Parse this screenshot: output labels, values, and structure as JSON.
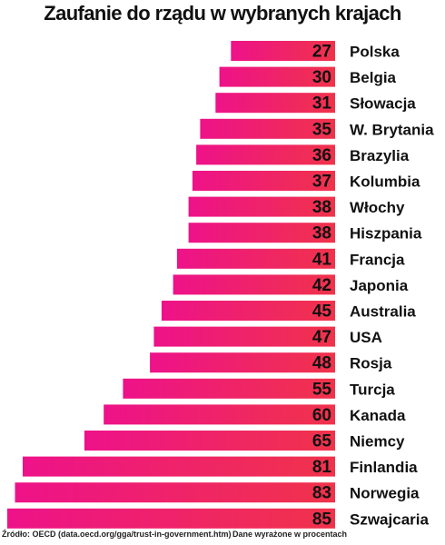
{
  "chart_data": {
    "type": "bar",
    "orientation": "horizontal",
    "title": "Zaufanie do rządu w wybranych krajach",
    "categories": [
      "Polska",
      "Belgia",
      "Słowacja",
      "W. Brytania",
      "Brazylia",
      "Kolumbia",
      "Włochy",
      "Hiszpania",
      "Francja",
      "Japonia",
      "Australia",
      "USA",
      "Rosja",
      "Turcja",
      "Kanada",
      "Niemcy",
      "Finlandia",
      "Norwegia",
      "Szwajcaria"
    ],
    "values": [
      27,
      30,
      31,
      35,
      36,
      37,
      38,
      38,
      41,
      42,
      45,
      47,
      48,
      55,
      60,
      65,
      81,
      83,
      85
    ],
    "gradient_colors": [
      "#ee1289",
      "#f0334a"
    ]
  },
  "footer": {
    "source": "Źródło: OECD (data.oecd.org/gga/trust-in-government.htm)",
    "note": "Dane wyrażone w procentach"
  }
}
